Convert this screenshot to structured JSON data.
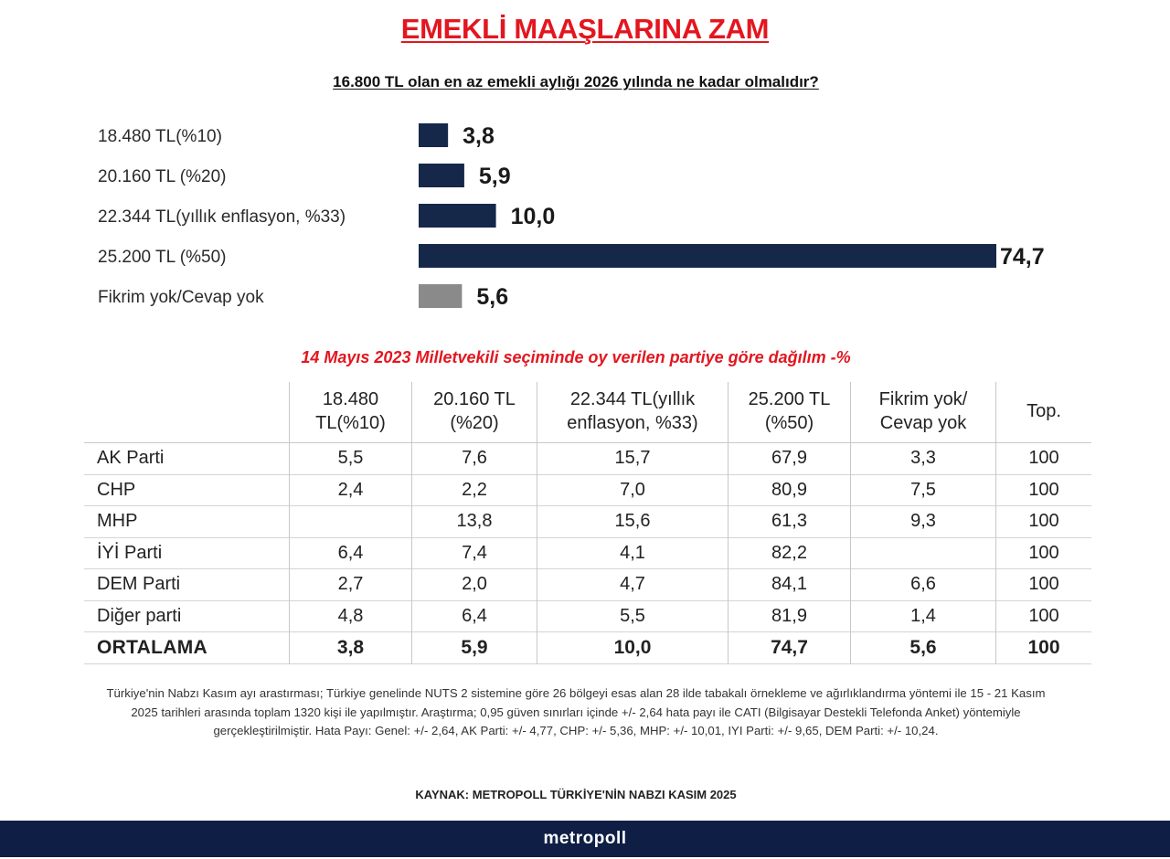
{
  "header": {
    "title": "EMEKLİ MAAŞLARINA ZAM",
    "question": "16.800 TL olan en az emekli aylığı 2026 yılında ne kadar olmalıdır?"
  },
  "colors": {
    "title": "#e3161f",
    "bar_main": "#16284a",
    "bar_neutral": "#8a8a8a",
    "footer": "#0e1e45"
  },
  "chart_data": {
    "type": "bar",
    "orientation": "horizontal",
    "categories": [
      "18.480 TL(%10)",
      "20.160 TL (%20)",
      "22.344 TL(yıllık enflasyon, %33)",
      "25.200 TL (%50)",
      "Fikrim yok/Cevap yok"
    ],
    "values": [
      3.8,
      5.9,
      10.0,
      74.7,
      5.6
    ],
    "value_labels": [
      "3,8",
      "5,9",
      "10,0",
      "74,7",
      "5,6"
    ],
    "bar_colors": [
      "#16284a",
      "#16284a",
      "#16284a",
      "#16284a",
      "#8a8a8a"
    ],
    "xlim": [
      0,
      74.7
    ],
    "grid": false,
    "legend": "none"
  },
  "table": {
    "title": "14 Mayıs 2023 Milletvekili seçiminde oy verilen partiye göre dağılım -%",
    "headers": [
      [
        "",
        ""
      ],
      [
        "18.480",
        "TL(%10)"
      ],
      [
        "20.160 TL",
        "(%20)"
      ],
      [
        "22.344 TL(yıllık",
        "enflasyon, %33)"
      ],
      [
        "25.200 TL",
        "(%50)"
      ],
      [
        "Fikrim yok/",
        "Cevap yok"
      ],
      [
        "Top.",
        ""
      ]
    ],
    "rows": [
      [
        "AK Parti",
        "5,5",
        "7,6",
        "15,7",
        "67,9",
        "3,3",
        "100"
      ],
      [
        "CHP",
        "2,4",
        "2,2",
        "7,0",
        "80,9",
        "7,5",
        "100"
      ],
      [
        "MHP",
        "",
        "13,8",
        "15,6",
        "61,3",
        "9,3",
        "100"
      ],
      [
        "İYİ Parti",
        "6,4",
        "7,4",
        "4,1",
        "82,2",
        "",
        "100"
      ],
      [
        "DEM Parti",
        "2,7",
        "2,0",
        "4,7",
        "84,1",
        "6,6",
        "100"
      ],
      [
        "Diğer parti",
        "4,8",
        "6,4",
        "5,5",
        "81,9",
        "1,4",
        "100"
      ]
    ],
    "average": [
      "ORTALAMA",
      "3,8",
      "5,9",
      "10,0",
      "74,7",
      "5,6",
      "100"
    ]
  },
  "footnote": {
    "methodology": "Türkiye'nin Nabzı Kasım ayı arastırması; Türkiye genelinde NUTS 2 sistemine göre 26 bölgeyi esas alan 28 ilde tabakalı örnekleme ve ağırlıklandırma yöntemi ile 15 - 21 Kasım 2025 tarihleri arasında toplam 1320 kişi ile yapılmıştır. Araştırma; 0,95 güven sınırları içinde +/- 2,64 hata payı ile CATI (Bilgisayar Destekli Telefonda Anket) yöntemiyle gerçekleştirilmiştir. Hata Payı: Genel: +/- 2,64, AK Parti: +/- 4,77, CHP: +/- 5,36, MHP: +/- 10,01, IYI Parti: +/- 9,65, DEM Parti: +/- 10,24.",
    "source": "KAYNAK: METROPOLL TÜRKİYE'NİN NABZI KASIM 2025"
  },
  "footer": {
    "brand": "metropoll"
  }
}
